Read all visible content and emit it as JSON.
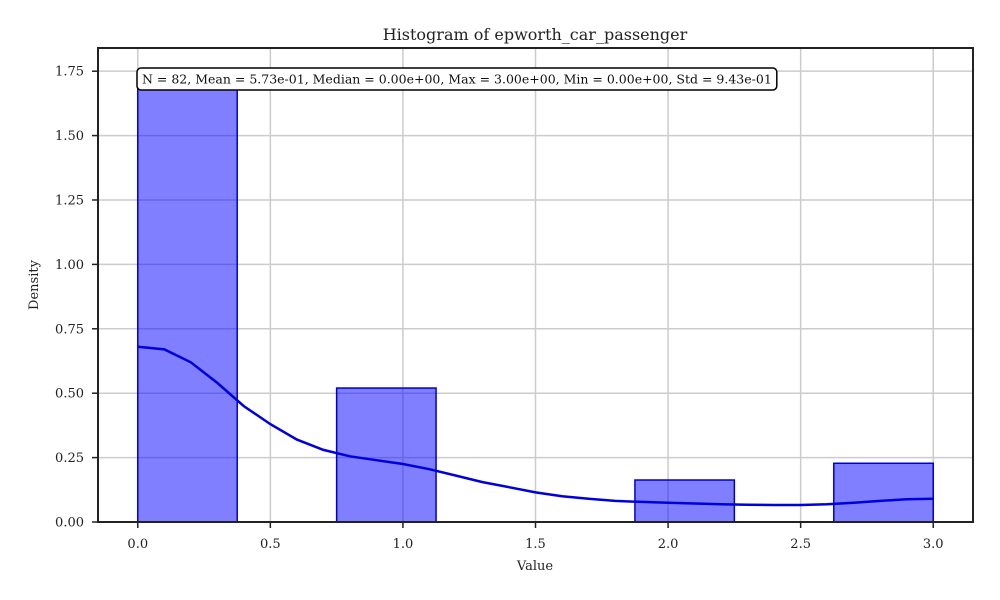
{
  "chart_data": {
    "type": "histogram",
    "title": "Histogram of epworth_car_passenger",
    "xlabel": "Value",
    "ylabel": "Density",
    "xlim": [
      -0.15,
      3.15
    ],
    "ylim": [
      0,
      1.84
    ],
    "x_ticks": [
      0.0,
      0.5,
      1.0,
      1.5,
      2.0,
      2.5,
      3.0
    ],
    "x_tick_labels": [
      "0.0",
      "0.5",
      "1.0",
      "1.5",
      "2.0",
      "2.5",
      "3.0"
    ],
    "y_ticks": [
      0.0,
      0.25,
      0.5,
      0.75,
      1.0,
      1.25,
      1.5,
      1.75
    ],
    "y_tick_labels": [
      "0.00",
      "0.25",
      "0.50",
      "0.75",
      "1.00",
      "1.25",
      "1.50",
      "1.75"
    ],
    "grid": true,
    "bins": [
      {
        "x0": 0.0,
        "x1": 0.375,
        "density": 1.69
      },
      {
        "x0": 0.75,
        "x1": 1.125,
        "density": 0.52
      },
      {
        "x0": 1.875,
        "x1": 2.25,
        "density": 0.163
      },
      {
        "x0": 2.625,
        "x1": 3.0,
        "density": 0.228
      }
    ],
    "kde": {
      "x": [
        0.0,
        0.1,
        0.2,
        0.3,
        0.4,
        0.5,
        0.6,
        0.7,
        0.8,
        0.9,
        1.0,
        1.1,
        1.2,
        1.3,
        1.4,
        1.5,
        1.6,
        1.7,
        1.8,
        1.9,
        2.0,
        2.1,
        2.2,
        2.3,
        2.4,
        2.5,
        2.6,
        2.7,
        2.8,
        2.9,
        3.0
      ],
      "y": [
        0.68,
        0.67,
        0.62,
        0.54,
        0.45,
        0.38,
        0.32,
        0.28,
        0.255,
        0.24,
        0.225,
        0.205,
        0.18,
        0.155,
        0.135,
        0.115,
        0.1,
        0.09,
        0.082,
        0.078,
        0.075,
        0.072,
        0.069,
        0.067,
        0.066,
        0.066,
        0.069,
        0.075,
        0.082,
        0.088,
        0.09
      ]
    },
    "colors": {
      "bar_fill": "#8080ff",
      "bar_edge": "#0000cc",
      "kde": "#0000dd"
    },
    "stats_box": "N = 82, Mean = 5.73e-01, Median = 0.00e+00, Max = 3.00e+00, Min = 0.00e+00, Std = 9.43e-01",
    "stats_box_position": "top-left"
  }
}
